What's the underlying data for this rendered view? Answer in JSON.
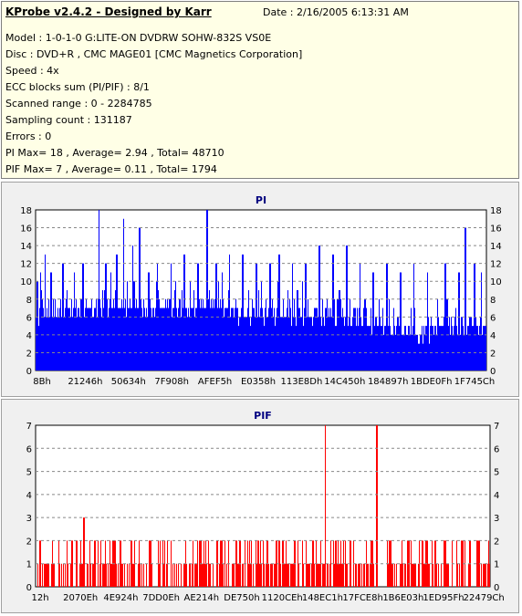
{
  "header": {
    "title": "KProbe v2.4.2 - Designed by Karr",
    "date": "Date : 2/16/2005 6:13:31 AM"
  },
  "info_lines": [
    "Model : 1-0-1-0 G:LITE-ON DVDRW SOHW-832S  VS0E",
    "Disc : DVD+R , CMC MAGE01 [CMC Magnetics Corporation]",
    "Speed : 4x",
    "ECC blocks sum (PI/PIF) : 8/1",
    "Scanned range : 0 - 2284785",
    "Sampling count : 131187",
    "Errors : 0",
    "PI Max= 18 , Average= 2.94 , Total= 48710",
    "PIF Max= 7 , Average= 0.11 , Total= 1794"
  ],
  "colors": {
    "pi": "#0000ff",
    "pif": "#ff0000",
    "title": "#000080"
  },
  "chart_data": [
    {
      "type": "bar",
      "title": "PI",
      "ylim": [
        0,
        18
      ],
      "yticks": [
        0,
        2,
        4,
        6,
        8,
        10,
        12,
        14,
        16,
        18
      ],
      "xlim": [
        0,
        2284785
      ],
      "x_tick_labels": [
        "8Bh",
        "21246h",
        "50634h",
        "7F908h",
        "AFEF5h",
        "E0358h",
        "113E8Dh",
        "14C450h",
        "184897h",
        "1BDE0Fh",
        "1F745Ch"
      ],
      "grid": true,
      "baseline_profile": [
        {
          "pos": 0.0,
          "value": 6
        },
        {
          "pos": 0.05,
          "value": 7
        },
        {
          "pos": 0.12,
          "value": 7
        },
        {
          "pos": 0.2,
          "value": 7
        },
        {
          "pos": 0.3,
          "value": 7
        },
        {
          "pos": 0.4,
          "value": 7
        },
        {
          "pos": 0.52,
          "value": 6
        },
        {
          "pos": 0.6,
          "value": 6
        },
        {
          "pos": 0.7,
          "value": 6
        },
        {
          "pos": 0.78,
          "value": 5
        },
        {
          "pos": 0.85,
          "value": 4
        },
        {
          "pos": 0.92,
          "value": 5
        },
        {
          "pos": 1.0,
          "value": 5
        }
      ],
      "peaks": [
        {
          "pos": 0.003,
          "value": 10
        },
        {
          "pos": 0.01,
          "value": 11
        },
        {
          "pos": 0.02,
          "value": 13
        },
        {
          "pos": 0.033,
          "value": 11
        },
        {
          "pos": 0.06,
          "value": 12
        },
        {
          "pos": 0.085,
          "value": 11
        },
        {
          "pos": 0.105,
          "value": 12
        },
        {
          "pos": 0.14,
          "value": 18
        },
        {
          "pos": 0.155,
          "value": 12
        },
        {
          "pos": 0.18,
          "value": 13
        },
        {
          "pos": 0.195,
          "value": 17
        },
        {
          "pos": 0.215,
          "value": 14
        },
        {
          "pos": 0.23,
          "value": 16
        },
        {
          "pos": 0.25,
          "value": 11
        },
        {
          "pos": 0.27,
          "value": 12
        },
        {
          "pos": 0.3,
          "value": 12
        },
        {
          "pos": 0.33,
          "value": 13
        },
        {
          "pos": 0.36,
          "value": 12
        },
        {
          "pos": 0.38,
          "value": 18
        },
        {
          "pos": 0.4,
          "value": 12
        },
        {
          "pos": 0.43,
          "value": 13
        },
        {
          "pos": 0.46,
          "value": 13
        },
        {
          "pos": 0.49,
          "value": 12
        },
        {
          "pos": 0.52,
          "value": 12
        },
        {
          "pos": 0.54,
          "value": 13
        },
        {
          "pos": 0.57,
          "value": 12
        },
        {
          "pos": 0.6,
          "value": 12
        },
        {
          "pos": 0.63,
          "value": 14
        },
        {
          "pos": 0.66,
          "value": 13
        },
        {
          "pos": 0.69,
          "value": 14
        },
        {
          "pos": 0.72,
          "value": 12
        },
        {
          "pos": 0.75,
          "value": 11
        },
        {
          "pos": 0.78,
          "value": 12
        },
        {
          "pos": 0.81,
          "value": 11
        },
        {
          "pos": 0.84,
          "value": 12
        },
        {
          "pos": 0.87,
          "value": 11
        },
        {
          "pos": 0.91,
          "value": 12
        },
        {
          "pos": 0.94,
          "value": 11
        },
        {
          "pos": 0.955,
          "value": 16
        },
        {
          "pos": 0.975,
          "value": 12
        },
        {
          "pos": 0.99,
          "value": 11
        }
      ]
    },
    {
      "type": "bar",
      "title": "PIF",
      "ylim": [
        0,
        7
      ],
      "yticks": [
        0,
        1,
        2,
        3,
        4,
        5,
        6,
        7
      ],
      "xlim": [
        0,
        2284785
      ],
      "x_tick_labels": [
        "12h",
        "2070Eh",
        "4E924h",
        "7DD0Eh",
        "AE214h",
        "DE750h",
        "1120CEh",
        "148EC1h",
        "17FCE8h",
        "1B6E03h",
        "1ED95Fh",
        "22479Ch"
      ],
      "grid": true,
      "peaks": [
        {
          "pos": 0.02,
          "value": 1
        },
        {
          "pos": 0.05,
          "value": 2
        },
        {
          "pos": 0.09,
          "value": 2
        },
        {
          "pos": 0.105,
          "value": 3
        },
        {
          "pos": 0.13,
          "value": 2
        },
        {
          "pos": 0.17,
          "value": 2
        },
        {
          "pos": 0.21,
          "value": 2
        },
        {
          "pos": 0.25,
          "value": 2
        },
        {
          "pos": 0.29,
          "value": 2
        },
        {
          "pos": 0.33,
          "value": 2
        },
        {
          "pos": 0.37,
          "value": 2
        },
        {
          "pos": 0.41,
          "value": 2
        },
        {
          "pos": 0.45,
          "value": 2
        },
        {
          "pos": 0.49,
          "value": 2
        },
        {
          "pos": 0.53,
          "value": 2
        },
        {
          "pos": 0.57,
          "value": 2
        },
        {
          "pos": 0.61,
          "value": 2
        },
        {
          "pos": 0.638,
          "value": 7
        },
        {
          "pos": 0.66,
          "value": 2
        },
        {
          "pos": 0.7,
          "value": 2
        },
        {
          "pos": 0.74,
          "value": 2
        },
        {
          "pos": 0.752,
          "value": 7
        },
        {
          "pos": 0.78,
          "value": 2
        },
        {
          "pos": 0.82,
          "value": 2
        },
        {
          "pos": 0.86,
          "value": 2
        },
        {
          "pos": 0.9,
          "value": 2
        },
        {
          "pos": 0.94,
          "value": 2
        },
        {
          "pos": 0.975,
          "value": 2
        }
      ]
    }
  ]
}
